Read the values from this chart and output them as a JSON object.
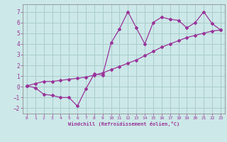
{
  "xlabel": "Windchill (Refroidissement éolien,°C)",
  "bg_color": "#cce8e8",
  "grid_color": "#aacccc",
  "line_color": "#993399",
  "xlim": [
    -0.5,
    23.5
  ],
  "ylim": [
    -2.5,
    7.7
  ],
  "xticks": [
    0,
    1,
    2,
    3,
    4,
    5,
    6,
    7,
    8,
    9,
    10,
    11,
    12,
    13,
    14,
    15,
    16,
    17,
    18,
    19,
    20,
    21,
    22,
    23
  ],
  "yticks": [
    -2,
    -1,
    0,
    1,
    2,
    3,
    4,
    5,
    6,
    7
  ],
  "hours": [
    0,
    1,
    2,
    3,
    4,
    5,
    6,
    7,
    8,
    9,
    10,
    11,
    12,
    13,
    14,
    15,
    16,
    17,
    18,
    19,
    20,
    21,
    22,
    23
  ],
  "zigzag_y": [
    0.1,
    -0.1,
    -0.7,
    -0.8,
    -1.0,
    -1.0,
    -1.8,
    -0.2,
    1.2,
    1.1,
    4.1,
    5.4,
    7.0,
    5.5,
    4.0,
    6.0,
    6.5,
    6.3,
    6.2,
    5.5,
    6.0,
    7.0,
    5.9,
    5.3
  ],
  "trend_y": [
    0.1,
    0.3,
    0.5,
    0.5,
    0.6,
    0.7,
    0.8,
    0.9,
    1.1,
    1.3,
    1.6,
    1.9,
    2.2,
    2.5,
    2.9,
    3.3,
    3.7,
    4.0,
    4.3,
    4.6,
    4.8,
    5.0,
    5.2,
    5.3
  ]
}
